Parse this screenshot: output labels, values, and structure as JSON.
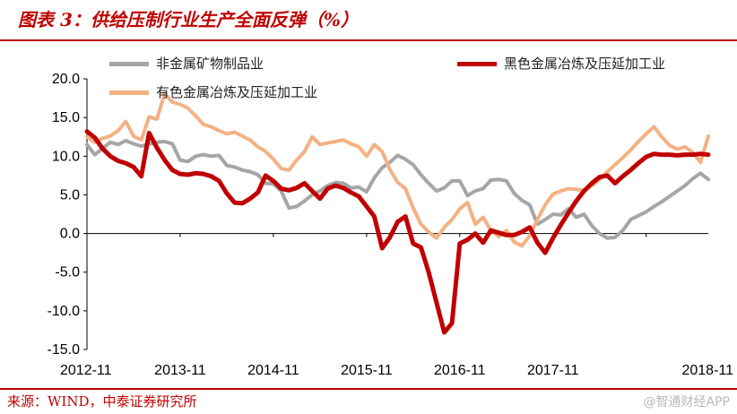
{
  "header": {
    "title": "图表 3：供给压制行业生产全面反弹（%）"
  },
  "footer": {
    "source": "来源：WIND，中泰证券研究所",
    "watermark": "@智通财经APP"
  },
  "colors": {
    "accent": "#c00000",
    "nonmetal": "#a6a6a6",
    "ferrous": "#c00000",
    "nonferrous": "#f4b183"
  },
  "chart_data": {
    "type": "line",
    "title": "供给压制行业生产全面反弹（%）",
    "xlabel": "",
    "ylabel": "",
    "ylim": [
      -15,
      20
    ],
    "yticks": [
      -15,
      -10,
      -5,
      0,
      5,
      10,
      15,
      20
    ],
    "ytick_labels": [
      "-15.0",
      "-10.0",
      "-5.0",
      "0.0",
      "5.0",
      "10.0",
      "15.0",
      "20.0"
    ],
    "xticks": [
      "2012-11",
      "2013-11",
      "2014-11",
      "2015-11",
      "2016-11",
      "2017-11",
      "2018-11"
    ],
    "grid": false,
    "legend": "top",
    "series": [
      {
        "name": "非金属矿物制品业",
        "color": "#a6a6a6",
        "values": [
          11.5,
          10.2,
          11.0,
          11.8,
          11.5,
          12.0,
          11.6,
          11.3,
          11.6,
          11.8,
          11.9,
          11.6,
          9.5,
          9.3,
          10.0,
          10.2,
          10.0,
          10.1,
          8.8,
          8.6,
          8.2,
          8.0,
          7.6,
          6.5,
          6.4,
          5.5,
          3.3,
          3.5,
          4.2,
          5.0,
          5.5,
          6.2,
          6.6,
          6.5,
          5.9,
          6.0,
          5.4,
          7.2,
          8.5,
          9.2,
          10.1,
          9.6,
          8.9,
          7.6,
          6.5,
          5.5,
          5.9,
          6.8,
          6.8,
          4.9,
          5.5,
          5.8,
          6.9,
          7.0,
          6.8,
          5.2,
          4.3,
          3.7,
          1.2,
          1.8,
          2.5,
          2.4,
          3.2,
          2.1,
          2.5,
          1.0,
          0.0,
          -0.6,
          -0.5,
          0.4,
          1.8,
          2.3,
          2.8,
          3.5,
          4.1,
          4.8,
          5.5,
          6.2,
          7.1,
          7.8,
          7.0
        ]
      },
      {
        "name": "黑色金属冶炼及压延加工业",
        "color": "#c00000",
        "values": [
          13.2,
          12.4,
          11.0,
          10.0,
          9.4,
          9.1,
          8.6,
          7.4,
          13.0,
          11.1,
          9.5,
          8.2,
          7.7,
          7.6,
          7.8,
          7.7,
          7.4,
          6.8,
          5.2,
          4.0,
          3.9,
          4.5,
          5.3,
          7.5,
          6.8,
          5.8,
          5.6,
          5.9,
          6.5,
          5.5,
          4.5,
          5.8,
          6.2,
          5.9,
          5.3,
          4.8,
          3.5,
          2.2,
          -1.9,
          -0.5,
          1.5,
          2.2,
          -1.3,
          -1.8,
          -5.0,
          -8.9,
          -12.8,
          -11.6,
          -1.3,
          -0.8,
          0.0,
          -1.2,
          0.4,
          0.1,
          -0.2,
          -0.2,
          0.2,
          0.8,
          -1.2,
          -2.5,
          -0.6,
          1.1,
          2.7,
          4.2,
          5.5,
          6.5,
          7.3,
          7.5,
          6.5,
          7.4,
          8.2,
          9.1,
          9.9,
          10.3,
          10.2,
          10.2,
          10.1,
          10.2,
          10.2,
          10.3,
          10.2
        ]
      },
      {
        "name": "有色金属冶炼及压延加工业",
        "color": "#f4b183",
        "values": [
          12.5,
          11.8,
          12.3,
          12.6,
          13.3,
          14.5,
          12.6,
          12.1,
          15.1,
          14.8,
          18.1,
          17.0,
          16.7,
          16.2,
          15.2,
          14.1,
          13.8,
          13.3,
          12.9,
          13.1,
          12.6,
          12.1,
          11.2,
          10.6,
          9.6,
          8.4,
          8.2,
          9.5,
          10.6,
          12.5,
          11.5,
          11.7,
          11.9,
          12.1,
          11.6,
          11.2,
          10.0,
          11.5,
          10.6,
          8.3,
          6.6,
          5.8,
          3.3,
          1.2,
          0.2,
          -0.6,
          0.8,
          1.8,
          3.2,
          4.0,
          1.2,
          2.1,
          0.4,
          -0.4,
          0.4,
          -1.1,
          -1.6,
          -0.3,
          1.8,
          3.7,
          5.1,
          5.5,
          5.8,
          5.7,
          5.6,
          6.2,
          7.0,
          8.0,
          8.9,
          9.8,
          10.8,
          11.9,
          12.9,
          13.8,
          12.5,
          11.4,
          10.9,
          11.2,
          10.5,
          9.2,
          12.6
        ]
      }
    ]
  }
}
